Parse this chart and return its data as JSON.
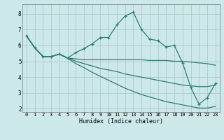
{
  "xlabel": "Humidex (Indice chaleur)",
  "bg_color": "#cce8e8",
  "grid_color": "#aacccc",
  "line_color": "#2e7d6e",
  "xlim": [
    -0.5,
    23.5
  ],
  "ylim": [
    1.8,
    8.6
  ],
  "xticks": [
    0,
    1,
    2,
    3,
    4,
    5,
    6,
    7,
    8,
    9,
    10,
    11,
    12,
    13,
    14,
    15,
    16,
    17,
    18,
    19,
    20,
    21,
    22,
    23
  ],
  "yticks": [
    2,
    3,
    4,
    5,
    6,
    7,
    8
  ],
  "series": [
    [
      6.6,
      5.85,
      5.3,
      5.3,
      5.45,
      5.2,
      5.55,
      5.8,
      6.1,
      6.5,
      6.5,
      7.3,
      7.85,
      8.1,
      7.0,
      6.4,
      6.3,
      5.9,
      6.0,
      4.9,
      3.35,
      2.3,
      2.7,
      3.6
    ],
    [
      6.6,
      5.85,
      5.3,
      5.3,
      5.45,
      5.2,
      5.15,
      5.1,
      5.1,
      5.1,
      5.1,
      5.1,
      5.1,
      5.1,
      5.1,
      5.05,
      5.05,
      5.05,
      5.0,
      5.0,
      4.95,
      4.9,
      4.85,
      4.75
    ],
    [
      6.6,
      5.85,
      5.3,
      5.3,
      5.45,
      5.2,
      5.0,
      4.85,
      4.7,
      4.55,
      4.45,
      4.35,
      4.2,
      4.1,
      4.0,
      3.9,
      3.8,
      3.7,
      3.6,
      3.5,
      3.45,
      3.4,
      3.4,
      3.5
    ],
    [
      6.6,
      5.85,
      5.3,
      5.3,
      5.45,
      5.2,
      4.85,
      4.6,
      4.3,
      4.05,
      3.8,
      3.55,
      3.3,
      3.1,
      2.9,
      2.75,
      2.6,
      2.45,
      2.35,
      2.25,
      2.15,
      2.05,
      2.05,
      2.15
    ]
  ],
  "marker_series": 0
}
